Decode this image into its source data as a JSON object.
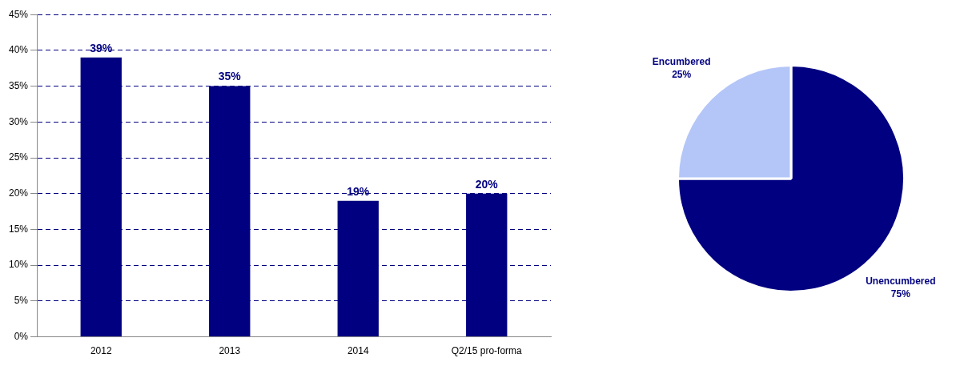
{
  "chart_data": [
    {
      "type": "bar",
      "categories": [
        "2012",
        "2013",
        "2014",
        "Q2/15 pro-forma"
      ],
      "values": [
        39,
        35,
        19,
        20
      ],
      "color": "#000080",
      "value_labels": [
        "39%",
        "35%",
        "19%",
        "20%"
      ],
      "ylim": [
        0,
        45
      ],
      "yticks": [
        {
          "value": 0,
          "label": "0%"
        },
        {
          "value": 5,
          "label": "5%"
        },
        {
          "value": 10,
          "label": "10%"
        },
        {
          "value": 15,
          "label": "15%"
        },
        {
          "value": 20,
          "label": "20%"
        },
        {
          "value": 25,
          "label": "25%"
        },
        {
          "value": 30,
          "label": "30%"
        },
        {
          "value": 35,
          "label": "35%"
        },
        {
          "value": 40,
          "label": "40%"
        },
        {
          "value": 45,
          "label": "45%"
        }
      ],
      "grid": "y",
      "legend": false
    },
    {
      "type": "pie",
      "categories": [
        "Unencumbered",
        "Encumbered"
      ],
      "values": [
        75,
        25
      ],
      "colors": [
        "#000080",
        "#b4c6f8"
      ],
      "value_labels": [
        "75%",
        "25%"
      ],
      "legend": false
    }
  ]
}
